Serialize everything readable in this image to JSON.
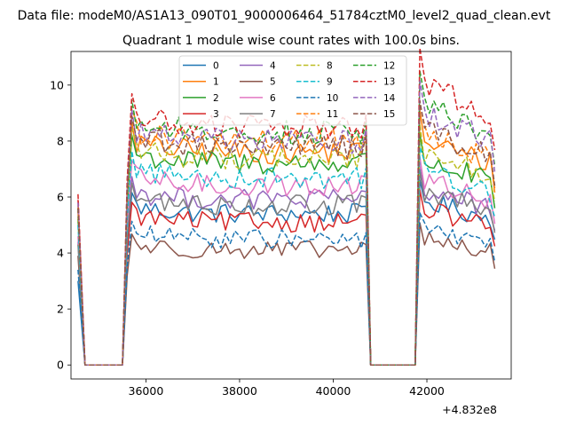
{
  "figure": {
    "suptitle": "Data file: modeM0/AS1A13_090T01_9000006464_51784cztM0_level2_quad_clean.evt"
  },
  "chart_data": {
    "type": "line",
    "title": "Quadrant 1 module wise count rates with 100.0s bins.",
    "xlabel": "",
    "ylabel": "",
    "x_offset_label": "+4.832e8",
    "xlim": [
      34400,
      43800
    ],
    "ylim": [
      -0.5,
      11.2
    ],
    "x_ticks": [
      36000,
      38000,
      40000,
      42000
    ],
    "x_tick_labels": [
      "36000",
      "38000",
      "40000",
      "42000"
    ],
    "y_ticks": [
      0,
      2,
      4,
      6,
      8,
      10
    ],
    "y_tick_labels": [
      "0",
      "2",
      "4",
      "6",
      "8",
      "10"
    ],
    "grid": false,
    "legend": {
      "location": "upper center",
      "columns": 4
    },
    "x_segments": {
      "gap1": [
        34700,
        35500
      ],
      "orbit1": [
        35600,
        40600
      ],
      "gap2": [
        40800,
        41750
      ],
      "orbit2": [
        41900,
        43400
      ],
      "start": 34550,
      "step": 100
    },
    "series": [
      {
        "name": "0",
        "color": "#1f77b4",
        "dash": "solid",
        "level1": 5.4,
        "level2": 5.6,
        "start": 3.0
      },
      {
        "name": "1",
        "color": "#ff7f0e",
        "dash": "solid",
        "level1": 7.6,
        "level2": 7.7,
        "start": 5.5
      },
      {
        "name": "2",
        "color": "#2ca02c",
        "dash": "solid",
        "level1": 7.2,
        "level2": 7.0,
        "start": 5.2
      },
      {
        "name": "3",
        "color": "#d62728",
        "dash": "solid",
        "level1": 5.1,
        "level2": 5.3,
        "start": 5.9
      },
      {
        "name": "4",
        "color": "#9467bd",
        "dash": "solid",
        "level1": 5.9,
        "level2": 6.0,
        "start": 4.4
      },
      {
        "name": "5",
        "color": "#8c564b",
        "dash": "solid",
        "level1": 4.1,
        "level2": 4.3,
        "start": 3.9
      },
      {
        "name": "6",
        "color": "#e377c2",
        "dash": "solid",
        "level1": 6.4,
        "level2": 6.3,
        "start": 4.6
      },
      {
        "name": "7",
        "color": "#7f7f7f",
        "dash": "solid",
        "level1": 5.7,
        "level2": 5.9,
        "start": 4.3
      },
      {
        "name": "8",
        "color": "#bcbd22",
        "dash": "dashed",
        "level1": 7.4,
        "level2": 7.3,
        "start": 5.3
      },
      {
        "name": "9",
        "color": "#17becf",
        "dash": "dashed",
        "level1": 6.7,
        "level2": 6.6,
        "start": 5.0
      },
      {
        "name": "10",
        "color": "#1f77b4",
        "dash": "dashed",
        "level1": 4.5,
        "level2": 4.6,
        "start": 3.4
      },
      {
        "name": "11",
        "color": "#ff7f0e",
        "dash": "dashed",
        "level1": 8.0,
        "level2": 7.9,
        "start": 5.7
      },
      {
        "name": "12",
        "color": "#2ca02c",
        "dash": "dashed",
        "level1": 8.3,
        "level2": 8.9,
        "start": 5.6
      },
      {
        "name": "13",
        "color": "#d62728",
        "dash": "dashed",
        "level1": 8.5,
        "level2": 9.6,
        "start": 6.1
      },
      {
        "name": "14",
        "color": "#9467bd",
        "dash": "dashed",
        "level1": 8.0,
        "level2": 8.6,
        "start": 5.8
      },
      {
        "name": "15",
        "color": "#8c564b",
        "dash": "dashed",
        "level1": 7.8,
        "level2": 8.0,
        "start": 5.6
      }
    ]
  }
}
